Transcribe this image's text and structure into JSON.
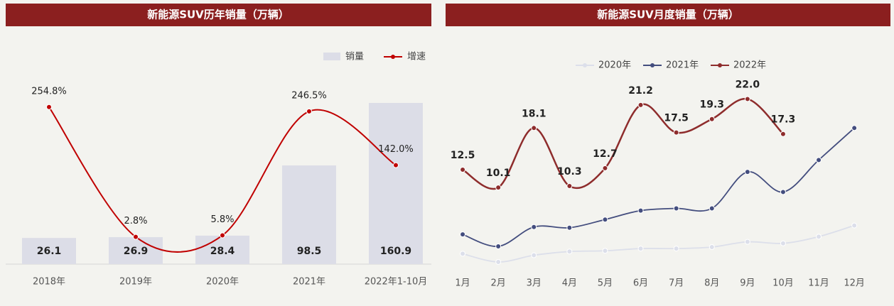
{
  "chart_data": [
    {
      "type": "bar_line",
      "title": "新能源SUV历年销量（万辆）",
      "categories": [
        "2018年",
        "2019年",
        "2020年",
        "2021年",
        "2022年1-10月"
      ],
      "series": [
        {
          "name": "销量",
          "color": "#dcdde7",
          "values": [
            26.1,
            26.9,
            28.4,
            98.5,
            160.9
          ]
        },
        {
          "name": "增速",
          "color": "#c00000",
          "axis": "y2",
          "values": [
            254.8,
            2.8,
            5.8,
            246.5,
            142.0
          ],
          "value_labels": [
            "254.8%",
            "2.8%",
            "5.8%",
            "246.5%",
            "142.0%"
          ]
        }
      ],
      "ylim": [
        0,
        180
      ],
      "y2lim": [
        -50,
        300
      ]
    },
    {
      "type": "line",
      "title": "新能源SUV月度销量（万辆）",
      "categories": [
        "1月",
        "2月",
        "3月",
        "4月",
        "5月",
        "6月",
        "7月",
        "8月",
        "9月",
        "10月",
        "11月",
        "12月"
      ],
      "series": [
        {
          "name": "2020年",
          "color": "#dcdfea",
          "values": [
            1.2,
            0.1,
            1.0,
            1.5,
            1.6,
            1.9,
            1.9,
            2.1,
            2.8,
            2.6,
            3.5,
            5.0
          ]
        },
        {
          "name": "2021年",
          "color": "#434d7e",
          "values": [
            3.8,
            2.2,
            4.8,
            4.7,
            5.8,
            7.0,
            7.3,
            7.3,
            12.2,
            9.5,
            13.8,
            18.1
          ]
        },
        {
          "name": "2022年",
          "color": "#8e2c2c",
          "values": [
            12.5,
            10.1,
            18.1,
            10.3,
            12.7,
            21.2,
            17.5,
            19.3,
            22.0,
            17.3,
            null,
            null
          ],
          "value_labels": [
            "12.5",
            "10.1",
            "18.1",
            "10.3",
            "12.7",
            "21.2",
            "17.5",
            "19.3",
            "22.0",
            "17.3",
            null,
            null
          ]
        }
      ],
      "ylim": [
        0,
        25
      ]
    }
  ]
}
